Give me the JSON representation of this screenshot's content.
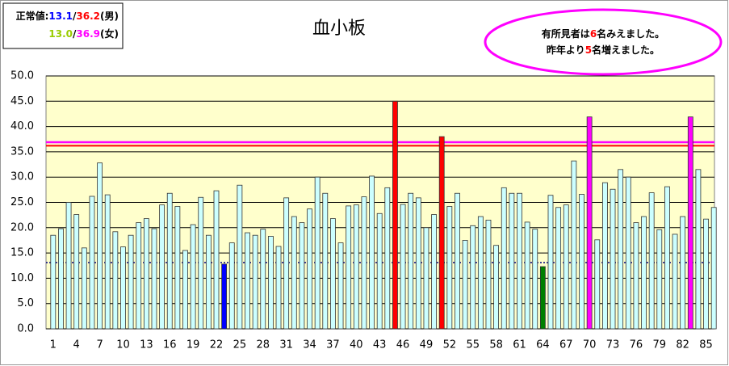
{
  "chart_data": {
    "type": "bar",
    "title": "血小板",
    "normal_values": {
      "heading": "正常値:",
      "separator": "/",
      "male": {
        "low": 13.1,
        "high": 36.2,
        "label": "(男)",
        "low_color": "#0000ff",
        "high_color": "#ff0000"
      },
      "female": {
        "low": {
          "value": 13,
          "label": "13.0"
        },
        "high": 36.9,
        "label": "(女)",
        "low_color": "#99cc00",
        "high_color": "#ff00ff"
      }
    },
    "callout": {
      "line1": [
        "有所見者は",
        "6",
        "名みえました。"
      ],
      "line2": [
        "昨年より",
        "5",
        "名増えました。"
      ]
    },
    "categories": [
      "1",
      null,
      null,
      "4",
      null,
      null,
      "7",
      null,
      null,
      "10",
      null,
      null,
      "13",
      null,
      null,
      "16",
      null,
      null,
      "19",
      null,
      null,
      "22",
      null,
      null,
      "25",
      null,
      null,
      "28",
      null,
      null,
      "31",
      null,
      null,
      "34",
      null,
      null,
      "37",
      null,
      null,
      "40",
      null,
      null,
      "43",
      null,
      null,
      "46",
      null,
      null,
      "49",
      null,
      null,
      "52",
      null,
      null,
      "55",
      null,
      null,
      "58",
      null,
      null,
      "61",
      null,
      null,
      "64",
      null,
      null,
      "67",
      null,
      null,
      "70",
      null,
      null,
      "73",
      null,
      null,
      "76",
      null,
      null,
      "79",
      null,
      null,
      "82",
      null,
      null,
      "85",
      null
    ],
    "values": [
      18.5,
      19.8,
      25,
      22.6,
      16,
      26.2,
      32.8,
      26.5,
      19.2,
      16.2,
      18.5,
      21,
      21.8,
      19.8,
      24.5,
      26.8,
      24.2,
      15.5,
      20.6,
      26,
      18.5,
      27.3,
      12.8,
      17,
      28.4,
      19,
      18.5,
      19.7,
      18.3,
      16.3,
      25.9,
      22.2,
      21,
      23.7,
      30,
      26.8,
      21.8,
      17,
      24.3,
      24.5,
      26.1,
      30.2,
      22.8,
      27.9,
      45,
      24.6,
      26.8,
      25.9,
      20,
      22.6,
      38,
      24.2,
      26.8,
      17.5,
      20.4,
      22.2,
      21.5,
      16.5,
      27.9,
      26.8,
      26.8,
      21.1,
      19.7,
      12.3,
      26.4,
      24,
      24.5,
      33.2,
      26.6,
      41.9,
      17.6,
      28.9,
      27.6,
      31.5,
      30,
      21,
      22.2,
      26.9,
      19.6,
      28.1,
      18.7,
      22.2,
      41.9,
      31.5,
      21.7,
      24
    ],
    "colors": [
      "#ccffff",
      "#ccffff",
      "#ccffff",
      "#ccffff",
      "#ccffff",
      "#ccffff",
      "#ccffff",
      "#ccffff",
      "#ccffff",
      "#ccffff",
      "#ccffff",
      "#ccffff",
      "#ccffff",
      "#ccffff",
      "#ccffff",
      "#ccffff",
      "#ccffff",
      "#ccffff",
      "#ccffff",
      "#ccffff",
      "#ccffff",
      "#ccffff",
      "#0000ff",
      "#ccffff",
      "#ccffff",
      "#ccffff",
      "#ccffff",
      "#ccffff",
      "#ccffff",
      "#ccffff",
      "#ccffff",
      "#ccffff",
      "#ccffff",
      "#ccffff",
      "#ccffff",
      "#ccffff",
      "#ccffff",
      "#ccffff",
      "#ccffff",
      "#ccffff",
      "#ccffff",
      "#ccffff",
      "#ccffff",
      "#ccffff",
      "#ff0000",
      "#ccffff",
      "#ccffff",
      "#ccffff",
      "#ccffff",
      "#ccffff",
      "#ff0000",
      "#ccffff",
      "#ccffff",
      "#ccffff",
      "#ccffff",
      "#ccffff",
      "#ccffff",
      "#ccffff",
      "#ccffff",
      "#ccffff",
      "#ccffff",
      "#ccffff",
      "#ccffff",
      "#008000",
      "#ccffff",
      "#ccffff",
      "#ccffff",
      "#ccffff",
      "#ccffff",
      "#ff00ff",
      "#ccffff",
      "#ccffff",
      "#ccffff",
      "#ccffff",
      "#ccffff",
      "#ccffff",
      "#ccffff",
      "#ccffff",
      "#ccffff",
      "#ccffff",
      "#ccffff",
      "#ccffff",
      "#ff00ff",
      "#ccffff",
      "#ccffff",
      "#ccffff"
    ],
    "ylim": [
      0,
      50
    ],
    "yticks": [
      {
        "value": 0,
        "label": "0.0"
      },
      {
        "value": 5,
        "label": "5.0"
      },
      {
        "value": 10,
        "label": "10.0"
      },
      {
        "value": 15,
        "label": "15.0"
      },
      {
        "value": 20,
        "label": "20.0"
      },
      {
        "value": 25,
        "label": "25.0"
      },
      {
        "value": 30,
        "label": "30.0"
      },
      {
        "value": 35,
        "label": "35.0"
      },
      {
        "value": 40,
        "label": "40.0"
      },
      {
        "value": 45,
        "label": "45.0"
      },
      {
        "value": 50,
        "label": "50.0"
      }
    ],
    "grid": true,
    "plot_background": "#ffffcc"
  }
}
